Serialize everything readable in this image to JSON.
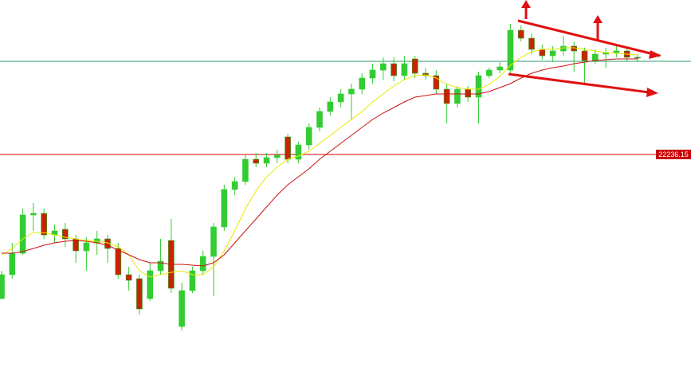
{
  "chart_data": {
    "type": "candlestick",
    "ylim": [
      21088,
      23012
    ],
    "up_color": "#33cc33",
    "down_color": "#cc2200",
    "open": [
      21512,
      21632,
      21740,
      21932,
      21940,
      21832,
      21860,
      21812,
      21752,
      21792,
      21812,
      21764,
      21632,
      21612,
      21512,
      21652,
      21804,
      21372,
      21552,
      21652,
      21724,
      21872,
      22060,
      22100,
      22212,
      22192,
      22220,
      22324,
      22212,
      22284,
      22372,
      22452,
      22500,
      22540,
      22564,
      22620,
      22660,
      22692,
      22632,
      22716,
      22644,
      22632,
      22564,
      22492,
      22564,
      22524,
      22632,
      22660,
      22660,
      22860,
      22820,
      22764,
      22732,
      22756,
      22780,
      22756,
      22708,
      22740,
      22748,
      22756,
      22724
    ],
    "high": [
      21652,
      21792,
      21964,
      21992,
      21964,
      21884,
      21892,
      21832,
      21820,
      21852,
      21832,
      21792,
      21672,
      21632,
      21692,
      21812,
      21912,
      21592,
      21672,
      21752,
      21892,
      22084,
      22124,
      22232,
      22244,
      22244,
      22260,
      22340,
      22300,
      22392,
      22472,
      22524,
      22564,
      22592,
      22644,
      22692,
      22724,
      22724,
      22732,
      22732,
      22672,
      22660,
      22592,
      22580,
      22580,
      22652,
      22672,
      22700,
      22892,
      22884,
      22844,
      22788,
      22780,
      22832,
      22804,
      22772,
      22764,
      22772,
      22780,
      22772,
      22740
    ],
    "low": [
      21512,
      21612,
      21732,
      21852,
      21812,
      21792,
      21772,
      21692,
      21652,
      21732,
      21692,
      21612,
      21552,
      21432,
      21500,
      21632,
      21540,
      21352,
      21540,
      21632,
      21524,
      21852,
      22032,
      22084,
      22172,
      22172,
      22192,
      22192,
      22192,
      22260,
      22352,
      22432,
      22472,
      22412,
      22540,
      22592,
      22612,
      22604,
      22612,
      22620,
      22612,
      22540,
      22392,
      22472,
      22500,
      22392,
      22620,
      22644,
      22644,
      22804,
      22740,
      22712,
      22700,
      22732,
      22652,
      22592,
      22692,
      22672,
      22724,
      22700,
      22700
    ],
    "close": [
      21632,
      21740,
      21932,
      21940,
      21832,
      21852,
      21812,
      21752,
      21792,
      21812,
      21764,
      21632,
      21604,
      21460,
      21652,
      21700,
      21564,
      21552,
      21652,
      21724,
      21872,
      22060,
      22100,
      22212,
      22192,
      22220,
      22232,
      22212,
      22284,
      22372,
      22452,
      22500,
      22540,
      22564,
      22620,
      22660,
      22692,
      22632,
      22692,
      22644,
      22632,
      22564,
      22492,
      22564,
      22524,
      22632,
      22660,
      22676,
      22860,
      22820,
      22764,
      22732,
      22756,
      22780,
      22756,
      22708,
      22740,
      22748,
      22756,
      22724,
      22722
    ],
    "lines": [
      {
        "color": "#e8e800",
        "values": [
          21732,
          21764,
          21812,
          21844,
          21844,
          21832,
          21820,
          21812,
          21804,
          21800,
          21792,
          21772,
          21732,
          21652,
          21620,
          21632,
          21644,
          21652,
          21632,
          21632,
          21672,
          21752,
          21852,
          21964,
          22052,
          22124,
          22172,
          22212,
          22228,
          22252,
          22292,
          22332,
          22372,
          22412,
          22452,
          22500,
          22540,
          22580,
          22612,
          22632,
          22636,
          22620,
          22588,
          22572,
          22564,
          22564,
          22588,
          22628,
          22684,
          22724,
          22752,
          22764,
          22764,
          22772,
          22772,
          22764,
          22756,
          22748,
          22744,
          22740,
          22736
        ]
      },
      {
        "color": "#cc1111",
        "values": [
          21740,
          21740,
          21748,
          21764,
          21780,
          21792,
          21800,
          21804,
          21800,
          21792,
          21780,
          21756,
          21732,
          21708,
          21692,
          21692,
          21684,
          21684,
          21680,
          21676,
          21692,
          21732,
          21792,
          21852,
          21912,
          21972,
          22032,
          22084,
          22124,
          22164,
          22212,
          22252,
          22292,
          22332,
          22372,
          22412,
          22444,
          22472,
          22500,
          22524,
          22532,
          22540,
          22540,
          22540,
          22540,
          22540,
          22552,
          22572,
          22592,
          22620,
          22644,
          22660,
          22672,
          22680,
          22692,
          22700,
          22708,
          22712,
          22716,
          22716,
          22716
        ]
      }
    ],
    "hlines": [
      {
        "value": 22704,
        "color": "#2a9d6a"
      },
      {
        "value": 22236.15,
        "color": "#cc0000"
      }
    ]
  }
}
